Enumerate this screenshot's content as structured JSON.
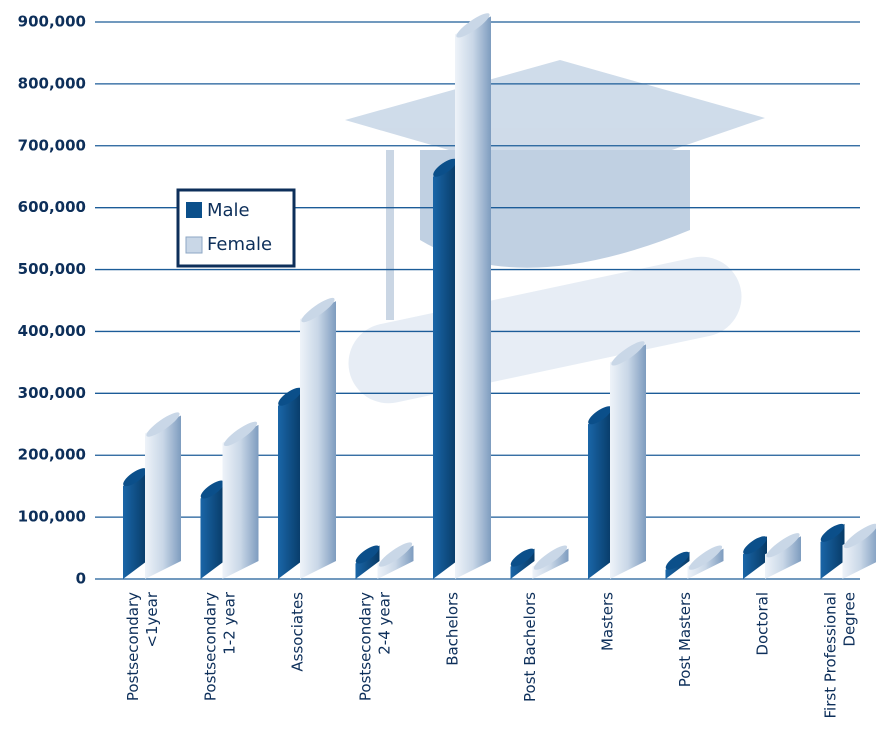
{
  "chart_data": {
    "type": "bar",
    "categories": [
      [
        "Postsecondary",
        "<1year"
      ],
      [
        "Postsecondary",
        "1-2 year"
      ],
      [
        "Associates"
      ],
      [
        "Postsecondary",
        "2-4 year"
      ],
      [
        "Bachelors"
      ],
      [
        "Post Bachelors"
      ],
      [
        "Masters"
      ],
      [
        "Post Masters"
      ],
      [
        "Doctoral"
      ],
      [
        "First Professional",
        "Degree"
      ]
    ],
    "series": [
      {
        "name": "Male",
        "color": "#0b4f8a",
        "values": [
          150000,
          130000,
          280000,
          25000,
          650000,
          20000,
          250000,
          15000,
          40000,
          60000
        ]
      },
      {
        "name": "Female",
        "color": "#c9d7e7",
        "values": [
          235000,
          220000,
          420000,
          25000,
          880000,
          20000,
          350000,
          20000,
          40000,
          55000
        ]
      }
    ],
    "ylim": [
      0,
      900000
    ],
    "yticks": [
      0,
      {
        "value": 100000,
        "label": "100,000"
      },
      {
        "value": 200000,
        "label": "200,000"
      },
      {
        "value": 300000,
        "label": "300,000"
      },
      {
        "value": 400000,
        "label": "400,000"
      },
      {
        "value": 500000,
        "label": "500,000"
      },
      {
        "value": 600000,
        "label": "600,000"
      },
      {
        "value": 700000,
        "label": "700,000"
      },
      {
        "value": 800000,
        "label": "800,000"
      },
      {
        "value": 900000,
        "label": "900,000"
      }
    ],
    "grid": true
  }
}
